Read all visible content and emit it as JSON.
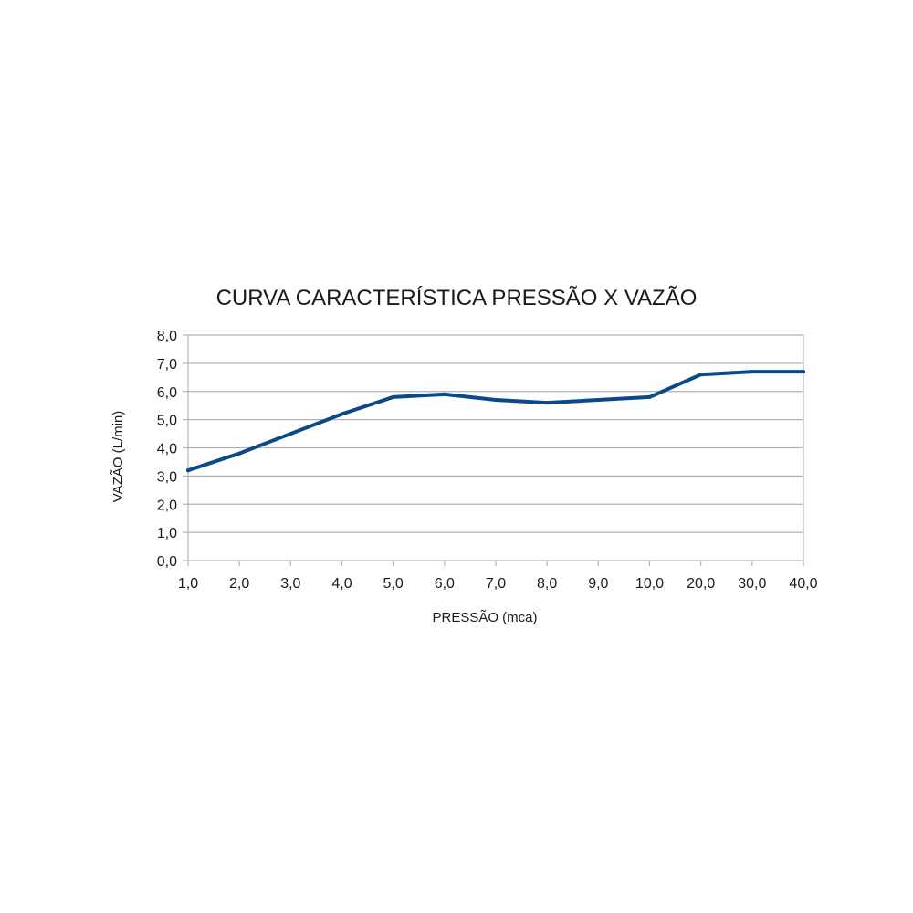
{
  "chart_data": {
    "type": "line",
    "title": "CURVA CARACTERÍSTICA PRESSÃO X VAZÃO",
    "xlabel": "PRESSÃO (mca)",
    "ylabel": "VAZÃO (L/min)",
    "categories": [
      "1,0",
      "2,0",
      "3,0",
      "4,0",
      "5,0",
      "6,0",
      "7,0",
      "8,0",
      "9,0",
      "10,0",
      "20,0",
      "30,0",
      "40,0"
    ],
    "series": [
      {
        "values": [
          3.2,
          3.8,
          4.5,
          5.2,
          5.8,
          5.9,
          5.7,
          5.6,
          5.7,
          5.8,
          6.6,
          6.7,
          6.7
        ]
      }
    ],
    "ylim": [
      0,
      8
    ],
    "yticks": [
      "0,0",
      "1,0",
      "2,0",
      "3,0",
      "4,0",
      "5,0",
      "6,0",
      "7,0",
      "8,0"
    ],
    "grid": true,
    "legend": "none",
    "colors": {
      "line": "#0a4a86",
      "grid": "#b3b3b3",
      "axis": "#b3b3b3"
    }
  }
}
